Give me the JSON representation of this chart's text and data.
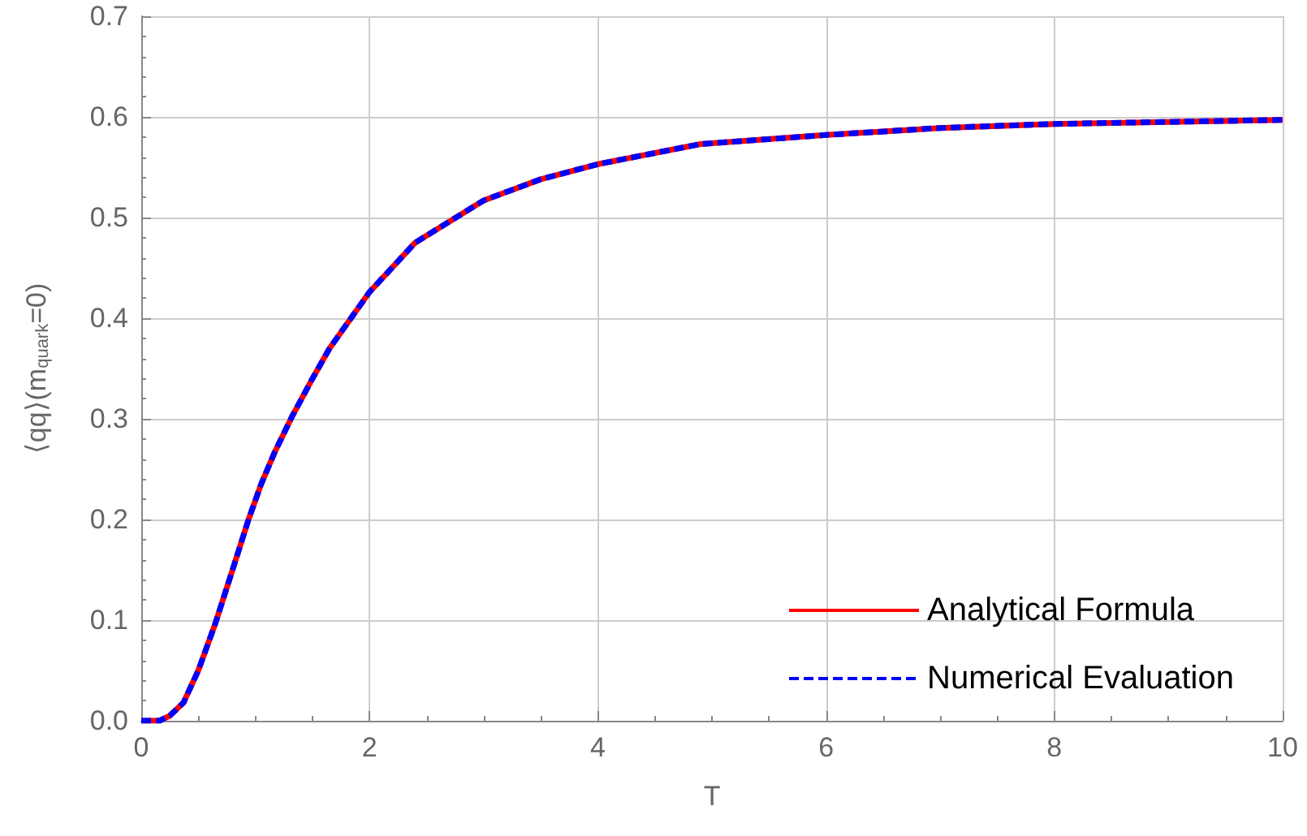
{
  "chart_data": {
    "type": "line",
    "xlabel": "T",
    "ylabel": "⟨qq⟩(m$_{quark}$=0)",
    "x": [
      0,
      0.1,
      0.16,
      0.25,
      0.37,
      0.5,
      0.65,
      0.8,
      0.94,
      1.05,
      1.17,
      1.32,
      1.5,
      1.65,
      2.0,
      2.4,
      3.0,
      3.5,
      4.0,
      4.9,
      6.0,
      7.0,
      8.0,
      9.0,
      10.0
    ],
    "series": [
      {
        "name": "Analytical Formula",
        "color": "#ff0000",
        "line_style": "solid",
        "values": [
          0,
          0,
          0,
          0.005,
          0.018,
          0.05,
          0.097,
          0.15,
          0.2,
          0.235,
          0.267,
          0.302,
          0.34,
          0.37,
          0.426,
          0.475,
          0.517,
          0.538,
          0.553,
          0.573,
          0.582,
          0.589,
          0.593,
          0.595,
          0.597
        ]
      },
      {
        "name": "Numerical Evaluation",
        "color": "#0000ff",
        "line_style": "dashed",
        "values": [
          0,
          0,
          0,
          0.005,
          0.018,
          0.05,
          0.097,
          0.15,
          0.2,
          0.235,
          0.267,
          0.302,
          0.34,
          0.37,
          0.426,
          0.475,
          0.517,
          0.538,
          0.553,
          0.573,
          0.582,
          0.589,
          0.593,
          0.595,
          0.597
        ]
      }
    ],
    "xlim": [
      0,
      10
    ],
    "xticks": [
      0,
      2,
      4,
      6,
      8,
      10
    ],
    "ylim": [
      0,
      0.7
    ],
    "yticks": [
      {
        "value": 0,
        "label": "0.0"
      },
      0.1,
      0.2,
      0.3,
      0.4,
      0.5,
      0.6,
      0.7
    ],
    "grid": true,
    "legend": "bottom right",
    "marker": "none"
  }
}
